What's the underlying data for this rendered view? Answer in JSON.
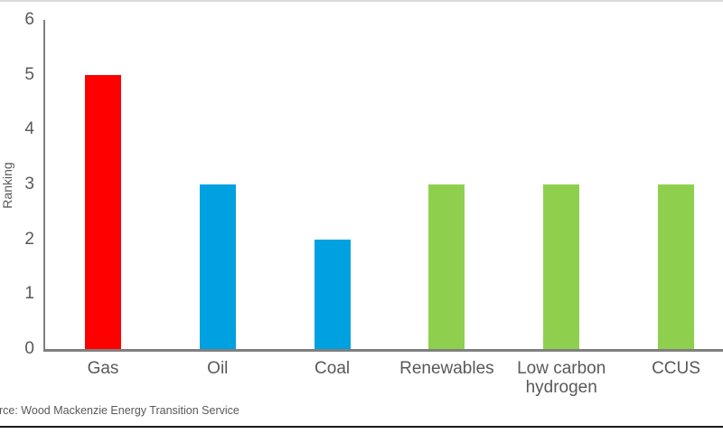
{
  "page": {
    "source_text": "rce: Wood Mackenzie Energy Transition Service"
  },
  "chart_data": {
    "type": "bar",
    "title": "",
    "xlabel": "",
    "ylabel": "Ranking",
    "ylim": [
      0,
      6
    ],
    "yticks": [
      0,
      1,
      2,
      3,
      4,
      5,
      6
    ],
    "grid": false,
    "legend_position": "none",
    "categories": [
      "Gas",
      "Oil",
      "Coal",
      "Renewables",
      "Low carbon hydrogen",
      "CCUS"
    ],
    "values": [
      5,
      3,
      2,
      3,
      3,
      3
    ],
    "bar_colors": [
      "#fe0000",
      "#00a1e0",
      "#00a1e0",
      "#8ed04e",
      "#8ed04e",
      "#8ed04e"
    ],
    "colors": {
      "gas_red": "#fe0000",
      "fossil_blue": "#00a1e0",
      "low_carbon_green": "#8ed04e",
      "axis": "#7f7f7f",
      "text": "#595959"
    }
  }
}
